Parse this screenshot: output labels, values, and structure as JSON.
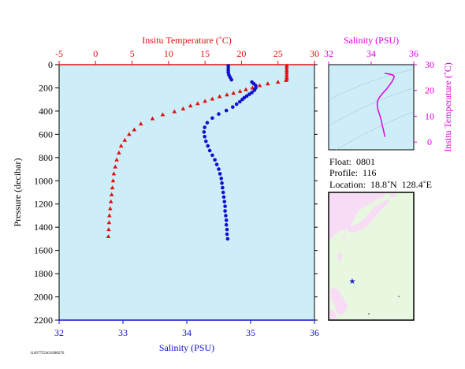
{
  "colors": {
    "temperature": "#e01010",
    "salinity": "#1010d0",
    "ts_curve": "#e000e0",
    "plot_bg": "#cdeef8",
    "land": "#f8dcf6",
    "ocean": "#e8f8e0",
    "marker": "#2020c0"
  },
  "chart_data": [
    {
      "type": "scatter",
      "y_title": "Pressure (decibar)",
      "top_title": "Insitu Temperature (˚C)",
      "bottom_title": "Salinity (PSU)",
      "ylim": [
        2200,
        0
      ],
      "yticks": [
        "0",
        "200",
        "400",
        "600",
        "800",
        "1000",
        "1200",
        "1400",
        "1600",
        "1800",
        "2000",
        "2200"
      ],
      "temperature_axis": {
        "range": [
          -5,
          30
        ],
        "ticks": [
          "-5",
          "0",
          "5",
          "10",
          "15",
          "20",
          "25",
          "30"
        ]
      },
      "salinity_axis": {
        "range": [
          32,
          36
        ],
        "ticks": [
          "32",
          "33",
          "34",
          "35",
          "36"
        ]
      },
      "grid": false,
      "series": [
        {
          "quantity": "temperature",
          "marker": "triangle",
          "points": [
            [
              26.2,
              10
            ],
            [
              26.2,
              30
            ],
            [
              26.2,
              50
            ],
            [
              26.2,
              70
            ],
            [
              26.2,
              90
            ],
            [
              26.2,
              110
            ],
            [
              26.2,
              125
            ],
            [
              26.1,
              135
            ],
            [
              25.0,
              150
            ],
            [
              23.6,
              165
            ],
            [
              22.5,
              180
            ],
            [
              21.5,
              200
            ],
            [
              20.6,
              215
            ],
            [
              19.8,
              230
            ],
            [
              18.9,
              245
            ],
            [
              18.0,
              260
            ],
            [
              17.0,
              275
            ],
            [
              16.0,
              295
            ],
            [
              15.0,
              315
            ],
            [
              14.0,
              335
            ],
            [
              13.0,
              355
            ],
            [
              12.0,
              380
            ],
            [
              10.8,
              405
            ],
            [
              9.2,
              430
            ],
            [
              7.8,
              465
            ],
            [
              6.2,
              510
            ],
            [
              5.3,
              560
            ],
            [
              4.6,
              600
            ],
            [
              4.0,
              650
            ],
            [
              3.5,
              700
            ],
            [
              3.2,
              760
            ],
            [
              2.9,
              820
            ],
            [
              2.7,
              880
            ],
            [
              2.5,
              940
            ],
            [
              2.4,
              1000
            ],
            [
              2.3,
              1060
            ],
            [
              2.2,
              1120
            ],
            [
              2.1,
              1180
            ],
            [
              2.0,
              1240
            ],
            [
              1.9,
              1300
            ],
            [
              1.85,
              1360
            ],
            [
              1.8,
              1420
            ],
            [
              1.75,
              1480
            ]
          ]
        },
        {
          "quantity": "salinity",
          "marker": "circle",
          "points": [
            [
              34.65,
              10
            ],
            [
              34.65,
              30
            ],
            [
              34.65,
              50
            ],
            [
              34.65,
              70
            ],
            [
              34.66,
              90
            ],
            [
              34.68,
              110
            ],
            [
              34.7,
              130
            ],
            [
              35.02,
              150
            ],
            [
              35.05,
              165
            ],
            [
              35.08,
              180
            ],
            [
              35.08,
              200
            ],
            [
              35.06,
              220
            ],
            [
              35.02,
              240
            ],
            [
              34.98,
              255
            ],
            [
              34.94,
              270
            ],
            [
              34.9,
              285
            ],
            [
              34.87,
              300
            ],
            [
              34.83,
              320
            ],
            [
              34.78,
              340
            ],
            [
              34.72,
              365
            ],
            [
              34.62,
              395
            ],
            [
              34.5,
              425
            ],
            [
              34.4,
              460
            ],
            [
              34.32,
              500
            ],
            [
              34.28,
              540
            ],
            [
              34.27,
              580
            ],
            [
              34.28,
              620
            ],
            [
              34.3,
              660
            ],
            [
              34.33,
              700
            ],
            [
              34.36,
              740
            ],
            [
              34.4,
              780
            ],
            [
              34.44,
              820
            ],
            [
              34.47,
              860
            ],
            [
              34.5,
              900
            ],
            [
              34.52,
              940
            ],
            [
              34.54,
              980
            ],
            [
              34.55,
              1020
            ],
            [
              34.56,
              1060
            ],
            [
              34.57,
              1100
            ],
            [
              34.58,
              1140
            ],
            [
              34.59,
              1180
            ],
            [
              34.6,
              1220
            ],
            [
              34.6,
              1260
            ],
            [
              34.61,
              1300
            ],
            [
              34.62,
              1340
            ],
            [
              34.62,
              1380
            ],
            [
              34.63,
              1420
            ],
            [
              34.63,
              1460
            ],
            [
              34.64,
              1500
            ]
          ]
        }
      ]
    },
    {
      "type": "line",
      "top_title": "Salinity (PSU)",
      "right_title": "Insitu Temperature (˚C)",
      "xlim": [
        32,
        36
      ],
      "xticks": [
        "32",
        "34",
        "36"
      ],
      "ylim": [
        -3,
        30
      ],
      "yticks": [
        "0",
        "10",
        "20",
        "30"
      ],
      "density_contours": true,
      "series": [
        {
          "points": [
            [
              34.64,
              2.0
            ],
            [
              34.62,
              3.0
            ],
            [
              34.58,
              4.5
            ],
            [
              34.52,
              6.5
            ],
            [
              34.47,
              8.5
            ],
            [
              34.4,
              10.5
            ],
            [
              34.32,
              12.5
            ],
            [
              34.28,
              14.5
            ],
            [
              34.3,
              16.0
            ],
            [
              34.4,
              17.5
            ],
            [
              34.55,
              19.0
            ],
            [
              34.72,
              20.5
            ],
            [
              34.85,
              22.0
            ],
            [
              34.98,
              23.5
            ],
            [
              35.05,
              24.5
            ],
            [
              35.08,
              25.5
            ],
            [
              35.02,
              26.0
            ],
            [
              34.9,
              26.3
            ],
            [
              34.75,
              26.5
            ],
            [
              34.66,
              26.6
            ],
            [
              34.65,
              26.8
            ]
          ]
        }
      ]
    }
  ],
  "info": {
    "float_label": "Float:  0801",
    "profile_label": "Profile:  116",
    "location_label": "Location:  18.8˚N  128.4˚E"
  },
  "footer": "1140775540.0388276"
}
